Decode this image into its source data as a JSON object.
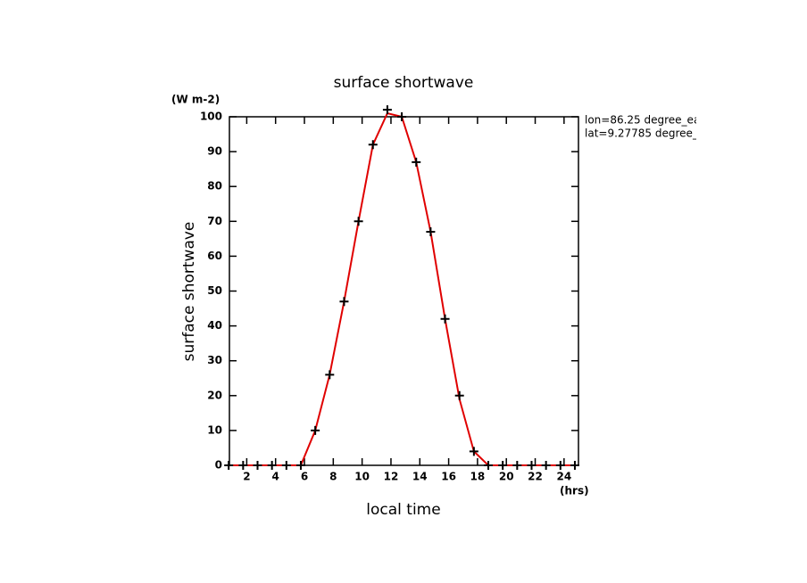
{
  "chart_data": {
    "type": "line",
    "title": "surface shortwave",
    "y_label": "surface shortwave",
    "y_units": "(W m-2)",
    "x_label": "local time",
    "x_units": "(hrs)",
    "annotations": [
      "lon=86.25 degree_ea",
      "lat=9.27785 degree_"
    ],
    "x": [
      0.75,
      1.75,
      2.75,
      3.75,
      4.75,
      5.75,
      6.75,
      7.75,
      8.75,
      9.75,
      10.75,
      11.75,
      12.75,
      13.75,
      14.75,
      15.75,
      16.75,
      17.75,
      18.75,
      19.75,
      20.75,
      21.75,
      22.75,
      23.75,
      24.75
    ],
    "series": [
      {
        "color": "#e00000",
        "marker": "none",
        "values": [
          0,
          0,
          0,
          0,
          0,
          0,
          10,
          26,
          47,
          70,
          92,
          101,
          100,
          87,
          67,
          42,
          19,
          4,
          0,
          0,
          0,
          0,
          0,
          0,
          0
        ]
      },
      {
        "color": "#000000",
        "marker": "plus",
        "values": [
          0,
          0,
          0,
          0,
          0,
          0,
          10,
          26,
          47,
          70,
          92,
          102,
          100,
          87,
          67,
          42,
          20,
          4,
          0,
          0,
          0,
          0,
          0,
          0,
          0
        ]
      }
    ],
    "xlim": [
      0.8,
      25
    ],
    "ylim": [
      0,
      100
    ],
    "xticks": [
      2,
      4,
      6,
      8,
      10,
      12,
      14,
      16,
      18,
      20,
      22,
      24
    ],
    "yticks": [
      0,
      10,
      20,
      30,
      40,
      50,
      60,
      70,
      80,
      90,
      100
    ]
  }
}
